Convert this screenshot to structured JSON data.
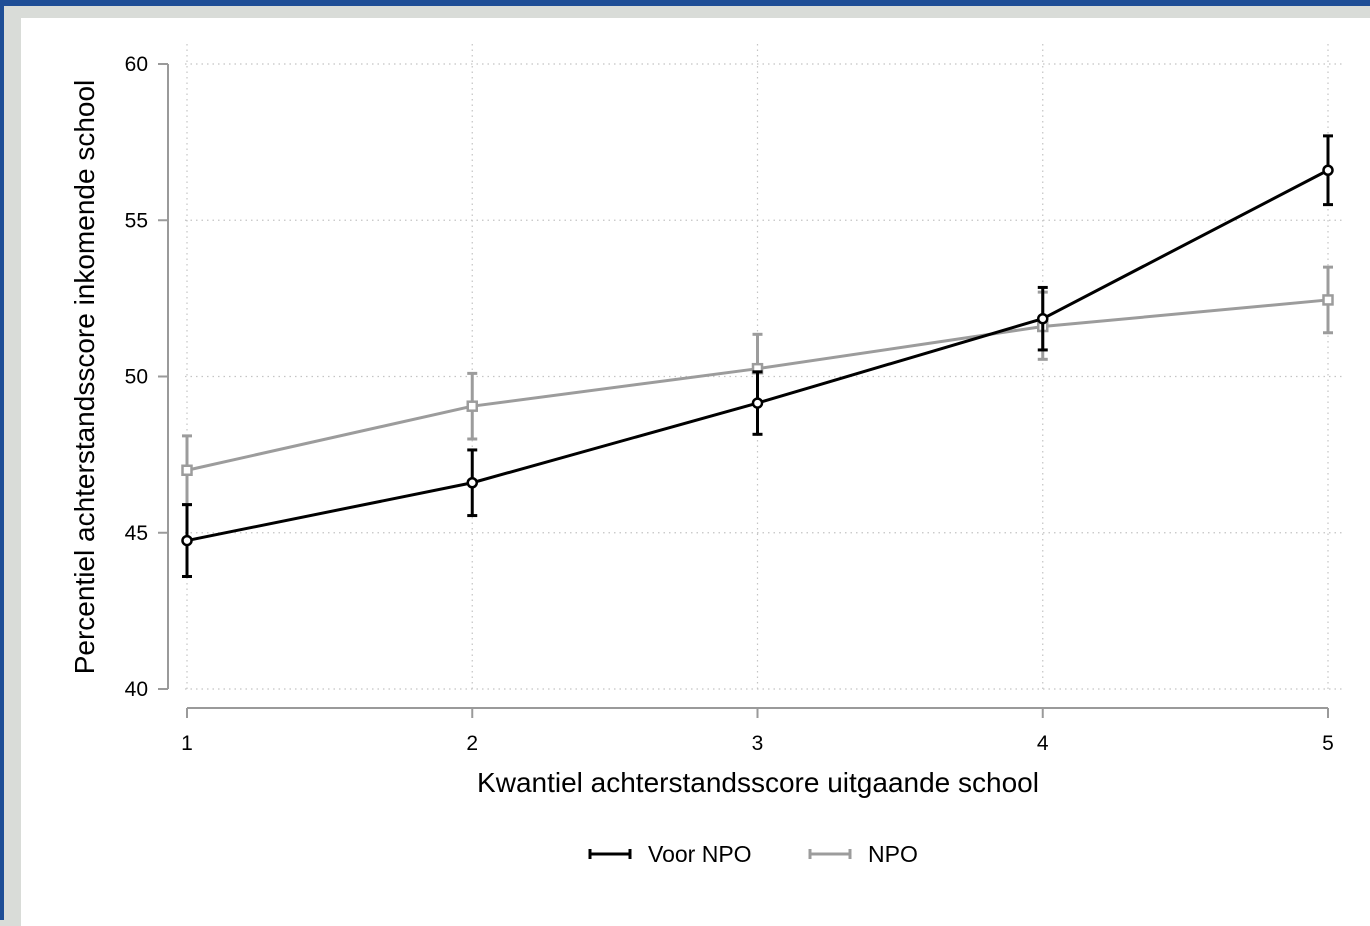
{
  "chart_data": {
    "type": "line",
    "xlabel": "Kwantiel achterstandsscore uitgaande school",
    "ylabel": "Percentiel achterstandsscore inkomende school",
    "x": [
      1,
      2,
      3,
      4,
      5
    ],
    "xticks": [
      "1",
      "2",
      "3",
      "4",
      "5"
    ],
    "xlim": [
      1,
      5
    ],
    "ylim": [
      40,
      60
    ],
    "yticks": [
      "40",
      "45",
      "50",
      "55",
      "60"
    ],
    "grid": true,
    "legend_position": "bottom",
    "series": [
      {
        "name": "Voor NPO",
        "color": "#000000",
        "marker": "circle",
        "values": [
          44.75,
          46.6,
          49.15,
          51.85,
          56.6
        ],
        "ci_low": [
          43.6,
          45.55,
          48.15,
          50.85,
          55.5
        ],
        "ci_high": [
          45.9,
          47.65,
          50.15,
          52.85,
          57.7
        ]
      },
      {
        "name": "NPO",
        "color": "#9c9c9c",
        "marker": "square",
        "values": [
          47.0,
          49.05,
          50.25,
          51.6,
          52.45
        ],
        "ci_low": [
          45.9,
          48.0,
          49.15,
          50.55,
          51.4
        ],
        "ci_high": [
          48.1,
          50.1,
          51.35,
          52.7,
          53.5
        ]
      }
    ]
  }
}
